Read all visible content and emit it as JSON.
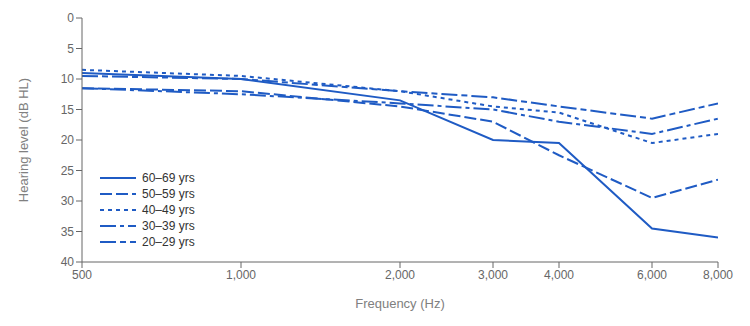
{
  "chart_data": {
    "type": "line",
    "x": [
      500,
      1000,
      2000,
      3000,
      4000,
      6000,
      8000
    ],
    "xlabel": "Frequency (Hz)",
    "ylabel": "Hearing level (dB HL)",
    "log": "x",
    "xlim": [
      500,
      8000
    ],
    "xticks": [
      500,
      {
        "value": 1000,
        "label": "1,000"
      },
      {
        "value": 2000,
        "label": "2,000"
      },
      {
        "value": 3000,
        "label": "3,000"
      },
      {
        "value": 4000,
        "label": "4,000"
      },
      {
        "value": 6000,
        "label": "6,000"
      },
      {
        "value": 8000,
        "label": "8,000"
      }
    ],
    "ylim": [
      40,
      0
    ],
    "yticks": [
      0,
      5,
      10,
      15,
      20,
      25,
      30,
      35,
      40
    ],
    "grid": false,
    "legend": "lower left",
    "series": [
      {
        "name": "60–69 yrs",
        "color": "#1f5bc4",
        "line_style": "solid",
        "values": [
          9.0,
          10.0,
          13.5,
          20.0,
          20.5,
          34.5,
          36.0
        ]
      },
      {
        "name": "50–59 yrs",
        "color": "#1f5bc4",
        "line_style": "dashed",
        "values": [
          11.5,
          12.0,
          14.5,
          17.0,
          22.5,
          29.5,
          26.5
        ]
      },
      {
        "name": "40–49 yrs",
        "color": "#1f5bc4",
        "line_style": "dotted",
        "values": [
          8.5,
          9.5,
          12.0,
          14.5,
          15.5,
          20.5,
          19.0
        ]
      },
      {
        "name": "30–39 yrs",
        "color": "#1f5bc4",
        "line_style": "dashdot",
        "values": [
          11.5,
          12.5,
          14.0,
          15.0,
          17.0,
          19.0,
          16.5
        ]
      },
      {
        "name": "20–29 yrs",
        "color": "#1f5bc4",
        "line_style": "dashdotdot",
        "values": [
          9.5,
          10.0,
          12.0,
          13.0,
          14.5,
          16.5,
          14.0
        ]
      }
    ]
  }
}
